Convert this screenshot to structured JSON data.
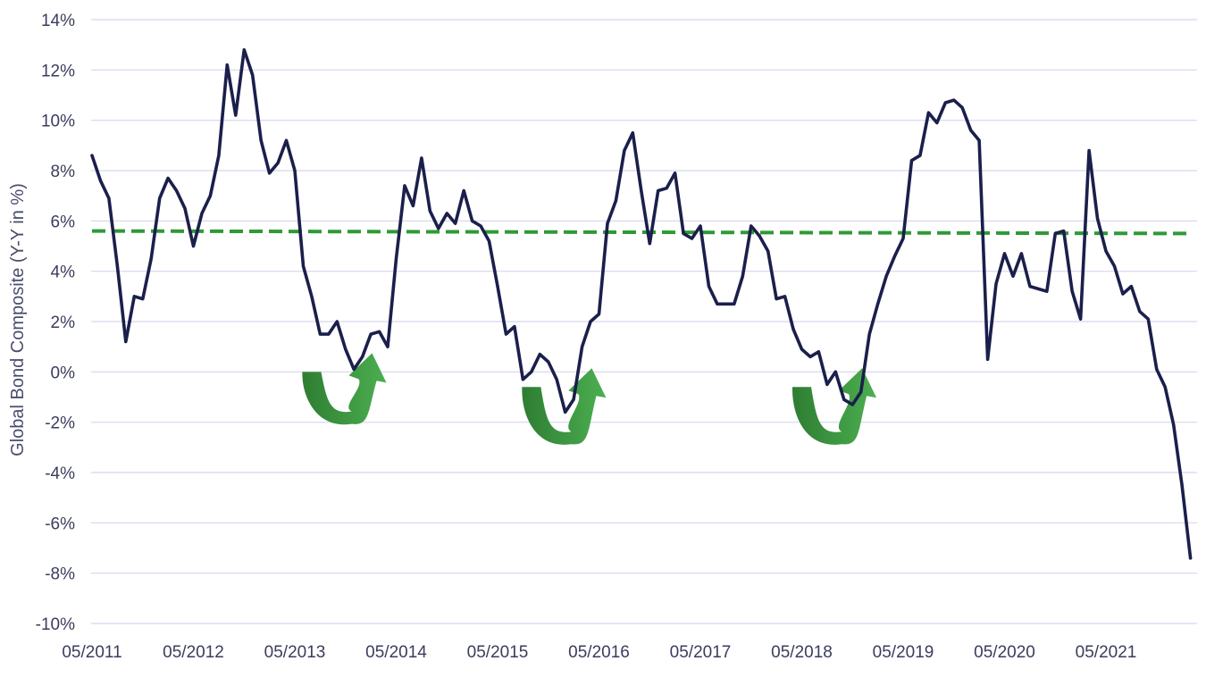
{
  "chart_data": {
    "type": "line",
    "title": "",
    "ylabel": "Global Bond Composite (Y-Y in %)",
    "xlabel": "",
    "ylim": [
      -10,
      14
    ],
    "xlim": [
      "2011-05",
      "2022-03"
    ],
    "y_ticks": [
      14,
      12,
      10,
      8,
      6,
      4,
      2,
      0,
      -2,
      -4,
      -6,
      -8,
      -10
    ],
    "y_tick_labels": [
      "14%",
      "12%",
      "10%",
      "8%",
      "6%",
      "4%",
      "2%",
      "0%",
      "-2%",
      "-4%",
      "-6%",
      "-8%",
      "-10%"
    ],
    "x_ticks": [
      "2011-05",
      "2012-05",
      "2013-05",
      "2014-05",
      "2015-05",
      "2016-05",
      "2017-05",
      "2018-05",
      "2019-05",
      "2020-05",
      "2021-05"
    ],
    "x_tick_labels": [
      "05/2011",
      "05/2012",
      "05/2013",
      "05/2014",
      "05/2015",
      "05/2016",
      "05/2017",
      "05/2018",
      "05/2019",
      "05/2020",
      "05/2021"
    ],
    "grid": "horizontal",
    "colors": {
      "series": "#1b1f4b",
      "reference": "#2e9a36",
      "arrow_dark": "#2e7d32",
      "arrow_light": "#4caf50"
    },
    "series": [
      {
        "x": [
          "2011-05",
          "2011-06",
          "2011-07",
          "2011-08",
          "2011-09",
          "2011-10",
          "2011-11",
          "2011-12",
          "2012-01",
          "2012-02",
          "2012-03",
          "2012-04",
          "2012-05",
          "2012-06",
          "2012-07",
          "2012-08",
          "2012-09",
          "2012-10",
          "2012-11",
          "2012-12",
          "2013-01",
          "2013-02",
          "2013-03",
          "2013-04",
          "2013-05",
          "2013-06",
          "2013-07",
          "2013-08",
          "2013-09",
          "2013-10",
          "2013-11",
          "2013-12",
          "2014-01",
          "2014-02",
          "2014-03",
          "2014-04",
          "2014-05",
          "2014-06",
          "2014-07",
          "2014-08",
          "2014-09",
          "2014-10",
          "2014-11",
          "2014-12",
          "2015-01",
          "2015-02",
          "2015-03",
          "2015-04",
          "2015-05",
          "2015-06",
          "2015-07",
          "2015-08",
          "2015-09",
          "2015-10",
          "2015-11",
          "2015-12",
          "2016-01",
          "2016-02",
          "2016-03",
          "2016-04",
          "2016-05",
          "2016-06",
          "2016-07",
          "2016-08",
          "2016-09",
          "2016-10",
          "2016-11",
          "2016-12",
          "2017-01",
          "2017-02",
          "2017-03",
          "2017-04",
          "2017-05",
          "2017-06",
          "2017-07",
          "2017-08",
          "2017-09",
          "2017-10",
          "2017-11",
          "2017-12",
          "2018-01",
          "2018-02",
          "2018-03",
          "2018-04",
          "2018-05",
          "2018-06",
          "2018-07",
          "2018-08",
          "2018-09",
          "2018-10",
          "2018-11",
          "2018-12",
          "2019-01",
          "2019-02",
          "2019-03",
          "2019-04",
          "2019-05",
          "2019-06",
          "2019-07",
          "2019-08",
          "2019-09",
          "2019-10",
          "2019-11",
          "2019-12",
          "2020-01",
          "2020-02",
          "2020-03",
          "2020-04",
          "2020-05",
          "2020-06",
          "2020-07",
          "2020-08",
          "2020-09",
          "2020-10",
          "2020-11",
          "2020-12",
          "2021-01",
          "2021-02",
          "2021-03",
          "2021-04",
          "2021-05",
          "2021-06",
          "2021-07",
          "2021-08",
          "2021-09",
          "2021-10",
          "2021-11",
          "2021-12",
          "2022-01",
          "2022-02",
          "2022-03"
        ],
        "values": [
          8.6,
          7.6,
          6.9,
          4.2,
          1.2,
          3.0,
          2.9,
          4.5,
          6.9,
          7.7,
          7.2,
          6.5,
          5.0,
          6.3,
          7.0,
          8.6,
          12.2,
          10.2,
          12.8,
          11.8,
          9.2,
          7.9,
          8.3,
          9.2,
          8.0,
          4.2,
          3.0,
          1.5,
          1.5,
          2.0,
          0.9,
          0.1,
          0.6,
          1.5,
          1.6,
          1.0,
          4.5,
          7.4,
          6.6,
          8.5,
          6.4,
          5.7,
          6.3,
          5.9,
          7.2,
          6.0,
          5.8,
          5.2,
          3.4,
          1.5,
          1.8,
          -0.3,
          0.0,
          0.7,
          0.4,
          -0.3,
          -1.6,
          -1.1,
          1.0,
          2.0,
          2.3,
          5.9,
          6.8,
          8.8,
          9.5,
          7.2,
          5.1,
          7.2,
          7.3,
          7.9,
          5.5,
          5.3,
          5.8,
          3.4,
          2.7,
          2.7,
          2.7,
          3.8,
          5.8,
          5.4,
          4.8,
          2.9,
          3.0,
          1.7,
          0.9,
          0.6,
          0.8,
          -0.5,
          0.0,
          -1.1,
          -1.3,
          -0.8,
          1.5,
          2.7,
          3.8,
          4.6,
          5.3,
          8.4,
          8.6,
          10.3,
          9.9,
          10.7,
          10.8,
          10.5,
          9.6,
          9.2,
          0.5,
          3.5,
          4.7,
          3.8,
          4.7,
          3.4,
          3.3,
          3.2,
          5.5,
          5.6,
          3.2,
          2.1,
          8.8,
          6.1,
          4.8,
          4.2,
          3.1,
          3.4,
          2.4,
          2.1,
          0.1,
          -0.6,
          -2.1,
          -4.5,
          -7.4
        ]
      }
    ],
    "reference_line": {
      "start_value": 5.6,
      "end_value": 5.5
    },
    "annotations": [
      {
        "type": "u-turn-arrow",
        "start_x": "2013-06",
        "end_x": "2014-05",
        "start_y": 0.0,
        "end_y": -2.0
      },
      {
        "type": "u-turn-arrow",
        "start_x": "2015-08",
        "end_x": "2016-07",
        "start_y": -0.6,
        "end_y": -2.8
      },
      {
        "type": "u-turn-arrow",
        "start_x": "2018-04",
        "end_x": "2019-03",
        "start_y": -0.6,
        "end_y": -2.8
      }
    ]
  }
}
